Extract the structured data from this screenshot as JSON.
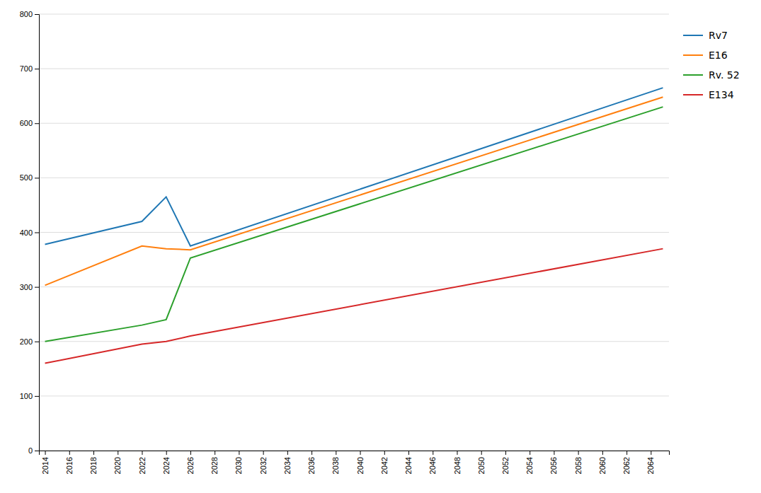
{
  "chart_data": {
    "type": "line",
    "x": [
      2014,
      2022,
      2024,
      2026,
      2065
    ],
    "series": [
      {
        "name": "Rv7",
        "values": [
          378,
          420,
          465,
          375,
          665
        ]
      },
      {
        "name": "E16",
        "values": [
          303,
          375,
          370,
          368,
          648
        ]
      },
      {
        "name": "Rv. 52",
        "values": [
          200,
          230,
          240,
          353,
          630
        ]
      },
      {
        "name": "E134",
        "values": [
          160,
          195,
          200,
          210,
          370
        ]
      }
    ],
    "xlim": [
      2013.5,
      2065.5
    ],
    "ylim": [
      0,
      800
    ],
    "xticks": [
      2014,
      2016,
      2018,
      2020,
      2022,
      2024,
      2026,
      2028,
      2030,
      2032,
      2034,
      2036,
      2038,
      2040,
      2042,
      2044,
      2046,
      2048,
      2050,
      2052,
      2054,
      2056,
      2058,
      2060,
      2062,
      2064
    ],
    "yticks": [
      0,
      100,
      200,
      300,
      400,
      500,
      600,
      700,
      800
    ],
    "grid": true,
    "legend": "right"
  }
}
